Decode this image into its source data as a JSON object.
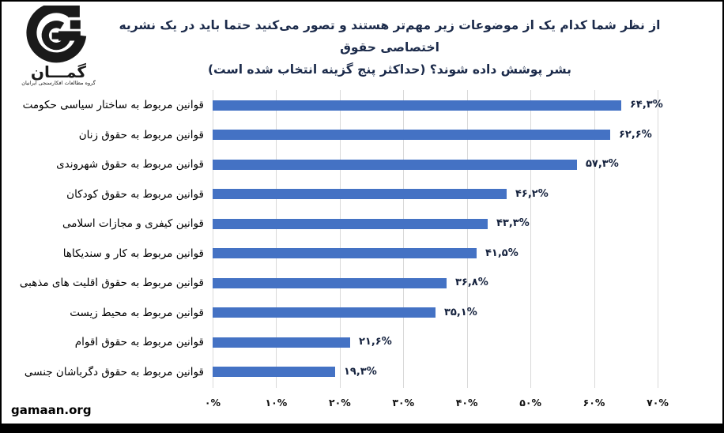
{
  "title": {
    "line1": "از نظر شما کدام یک از موضوعات زیر مهم‌تر هستند و تصور می‌کنید حتما باید در یک نشریه اختصاصی حقوق",
    "line2": "بشر پوشش داده شوند؟ (حداکثر پنج گزینه انتخاب شده است)"
  },
  "logo": {
    "brand": "گمـــان",
    "subtitle": "گروه مطالعات افکارسنجی ایرانیان"
  },
  "footer": {
    "website": "gamaan.org"
  },
  "colors": {
    "bar": "#4472C4",
    "grid": "#D9D9D9",
    "title_text": "#1B2A4A",
    "value_text": "#14213D"
  },
  "chart_data": {
    "type": "bar",
    "orientation": "horizontal",
    "title": "از نظر شما کدام یک از موضوعات زیر مهم‌تر هستند و تصور می‌کنید حتما باید در یک نشریه اختصاصی حقوق بشر پوشش داده شوند؟ (حداکثر پنج گزینه انتخاب شده است)",
    "categories": [
      "قوانین مربوط به ساختار سیاسی حکومت",
      "قوانین مربوط به حقوق زنان",
      "قوانین مربوط به حقوق شهروندی",
      "قوانین مربوط به حقوق کودکان",
      "قوانین کیفری و مجازات اسلامی",
      "قوانین مربوط به کار و سندیکاها",
      "قوانین مربوط به حقوق اقلیت های مذهبی",
      "قوانین مربوط به محیط زیست",
      "قوانین مربوط به حقوق اقوام",
      "قوانین مربوط به حقوق دگرباشان جنسی"
    ],
    "values": [
      64.3,
      62.6,
      57.3,
      46.2,
      43.3,
      41.5,
      36.8,
      35.1,
      21.6,
      19.3
    ],
    "value_labels": [
      "۶۴,۳%",
      "۶۲,۶%",
      "۵۷,۳%",
      "۴۶,۲%",
      "۴۳,۳%",
      "۴۱,۵%",
      "۳۶,۸%",
      "۳۵,۱%",
      "۲۱,۶%",
      "۱۹,۳%"
    ],
    "x_ticks": [
      "۰%",
      "۱۰%",
      "۲۰%",
      "۳۰%",
      "۴۰%",
      "۵۰%",
      "۶۰%",
      "۷۰%"
    ],
    "xlabel": "",
    "ylabel": "",
    "xlim": [
      0,
      70
    ],
    "grid": true,
    "legend": false
  }
}
